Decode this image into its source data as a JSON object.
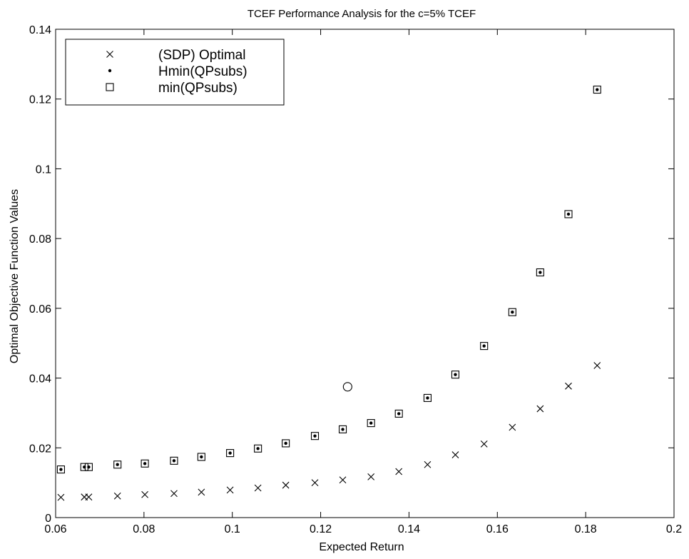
{
  "chart_data": {
    "type": "scatter",
    "title": "TCEF Performance Analysis for the c=5% TCEF",
    "xlabel": "Expected Return",
    "ylabel": "Optimal Objective Function Values",
    "xlim": [
      0.06,
      0.2
    ],
    "ylim": [
      0,
      0.14
    ],
    "x_ticks": [
      0.06,
      0.08,
      0.1,
      0.12,
      0.14,
      0.16,
      0.18,
      0.2
    ],
    "x_tick_labels": [
      "0.06",
      "0.08",
      "0.1",
      "0.12",
      "0.14",
      "0.16",
      "0.18",
      "0.2"
    ],
    "y_ticks": [
      0,
      0.02,
      0.04,
      0.06,
      0.08,
      0.1,
      0.12,
      0.14
    ],
    "y_tick_labels": [
      "0",
      "0.02",
      "0.04",
      "0.06",
      "0.08",
      "0.1",
      "0.12",
      "0.14"
    ],
    "grid": false,
    "legend_position": "top-left",
    "series": [
      {
        "name": "(SDP) Optimal",
        "marker": "x",
        "x": [
          0.0612,
          0.0665,
          0.0675,
          0.074,
          0.0802,
          0.0868,
          0.093,
          0.0995,
          0.1058,
          0.1121,
          0.1187,
          0.125,
          0.1314,
          0.1377,
          0.1442,
          0.1505,
          0.157,
          0.1634,
          0.1697,
          0.1761,
          0.1826
        ],
        "y": [
          0.0058,
          0.0059,
          0.0059,
          0.0062,
          0.0066,
          0.0069,
          0.0073,
          0.0079,
          0.0085,
          0.0093,
          0.01,
          0.0108,
          0.0117,
          0.0132,
          0.0152,
          0.018,
          0.0211,
          0.0259,
          0.0312,
          0.0377,
          0.0436
        ]
      },
      {
        "name": "Hmin(QPsubs)",
        "marker": "dot",
        "x": [
          0.0612,
          0.0665,
          0.0675,
          0.074,
          0.0802,
          0.0868,
          0.093,
          0.0995,
          0.1058,
          0.1121,
          0.1187,
          0.125,
          0.1314,
          0.1377,
          0.1442,
          0.1505,
          0.157,
          0.1634,
          0.1697,
          0.1761,
          0.1826
        ],
        "y": [
          0.0138,
          0.0145,
          0.0145,
          0.0152,
          0.0155,
          0.0163,
          0.0174,
          0.0185,
          0.0198,
          0.0213,
          0.0234,
          0.0253,
          0.0271,
          0.0298,
          0.0343,
          0.041,
          0.0492,
          0.0589,
          0.0703,
          0.087,
          0.1227
        ]
      },
      {
        "name": "min(QPsubs)",
        "marker": "square",
        "x": [
          0.0612,
          0.0665,
          0.0675,
          0.074,
          0.0802,
          0.0868,
          0.093,
          0.0995,
          0.1058,
          0.1121,
          0.1187,
          0.125,
          0.1314,
          0.1377,
          0.1442,
          0.1505,
          0.157,
          0.1634,
          0.1697,
          0.1761,
          0.1826
        ],
        "y": [
          0.0138,
          0.0145,
          0.0145,
          0.0152,
          0.0155,
          0.0163,
          0.0174,
          0.0185,
          0.0198,
          0.0213,
          0.0234,
          0.0253,
          0.0271,
          0.0298,
          0.0343,
          0.041,
          0.0492,
          0.0589,
          0.0703,
          0.087,
          0.1227
        ]
      }
    ],
    "annotations": [
      {
        "marker": "circle",
        "x": 0.1261,
        "y": 0.0375
      }
    ],
    "colors": {
      "marks": "#000000",
      "background": "#ffffff"
    }
  }
}
